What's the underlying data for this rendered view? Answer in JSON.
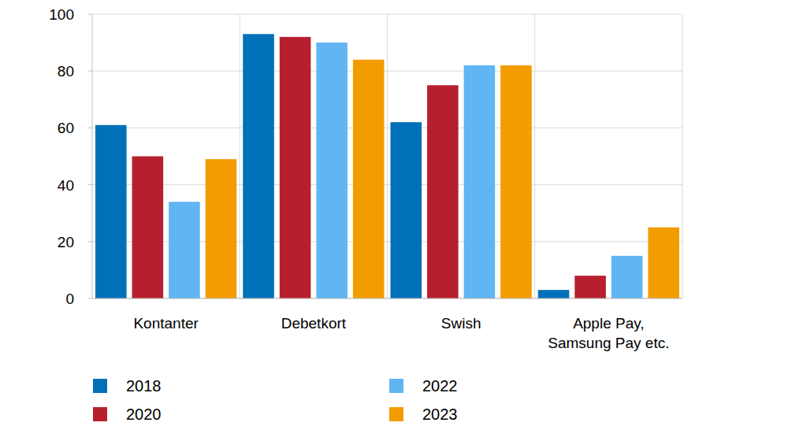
{
  "chart_data": {
    "type": "bar",
    "categories": [
      "Kontanter",
      "Debetkort",
      "Swish",
      "Apple Pay, Samsung Pay etc."
    ],
    "series": [
      {
        "name": "2018",
        "color": "#0070b9",
        "values": [
          61,
          93,
          62,
          3
        ]
      },
      {
        "name": "2020",
        "color": "#b71f2e",
        "values": [
          50,
          92,
          75,
          8
        ]
      },
      {
        "name": "2022",
        "color": "#60b5f2",
        "values": [
          34,
          90,
          82,
          15
        ]
      },
      {
        "name": "2023",
        "color": "#f39c00",
        "values": [
          49,
          84,
          82,
          25
        ]
      }
    ],
    "ylim": [
      0,
      100
    ],
    "yticks": [
      0,
      20,
      40,
      60,
      80,
      100
    ],
    "grid": true,
    "legend": "bottom"
  }
}
